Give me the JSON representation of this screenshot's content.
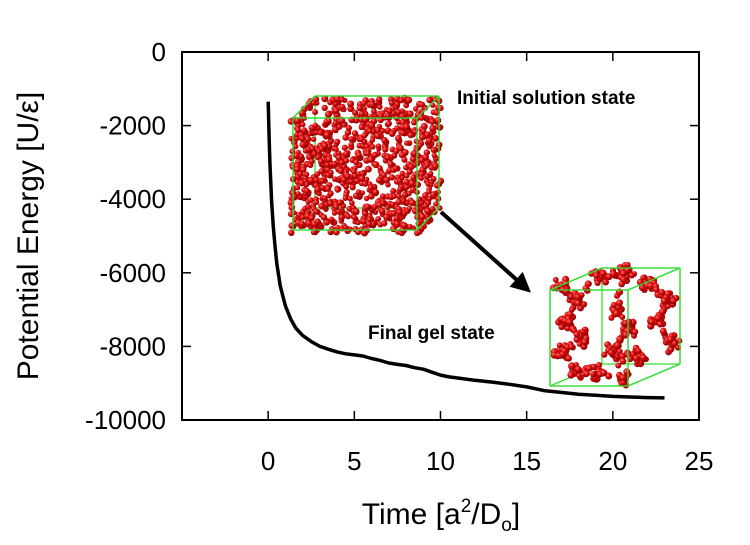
{
  "chart_data": {
    "type": "line",
    "title": "",
    "xlabel": "Time [a²/D₀]",
    "xlabel_parts": {
      "pre": "Time [a",
      "sup": "2",
      "mid": "/D",
      "sub": "o",
      "post": "]"
    },
    "ylabel": "Potential Energy [U/ε]",
    "xlim": [
      -5,
      25
    ],
    "ylim": [
      -10000,
      0
    ],
    "xticks": [
      0,
      5,
      10,
      15,
      20,
      25
    ],
    "yticks": [
      0,
      -2000,
      -4000,
      -6000,
      -8000,
      -10000
    ],
    "grid": false,
    "series": [
      {
        "color": "#000000",
        "x": [
          0,
          0.05,
          0.1,
          0.2,
          0.3,
          0.4,
          0.5,
          0.7,
          1.0,
          1.3,
          1.6,
          2.0,
          2.5,
          3.0,
          3.5,
          4.0,
          4.5,
          5.0,
          5.5,
          6.0,
          6.5,
          7.0,
          7.5,
          8.0,
          8.5,
          9.0,
          9.5,
          10.0,
          10.5,
          11.0,
          12.0,
          13.0,
          14.0,
          15.0,
          15.5,
          16.0,
          17.0,
          18.0,
          19.0,
          20.0,
          21.0,
          22.0,
          23.0
        ],
        "y": [
          -1350,
          -2200,
          -3000,
          -4050,
          -4750,
          -5300,
          -5750,
          -6350,
          -6900,
          -7250,
          -7500,
          -7700,
          -7870,
          -8000,
          -8080,
          -8150,
          -8200,
          -8230,
          -8260,
          -8330,
          -8380,
          -8450,
          -8490,
          -8520,
          -8580,
          -8620,
          -8700,
          -8780,
          -8830,
          -8860,
          -8920,
          -8970,
          -9030,
          -9100,
          -9150,
          -9200,
          -9250,
          -9300,
          -9330,
          -9360,
          -9375,
          -9390,
          -9400
        ]
      }
    ],
    "annotations": [
      {
        "text": "Initial solution state"
      },
      {
        "text": "Final gel state"
      }
    ],
    "insets": [
      {
        "label": "initial-solution-state-box",
        "particle_color": "#dd1111",
        "box_color": "#33dd33"
      },
      {
        "label": "final-gel-state-box",
        "particle_color": "#dd1111",
        "box_color": "#33dd33"
      }
    ]
  }
}
